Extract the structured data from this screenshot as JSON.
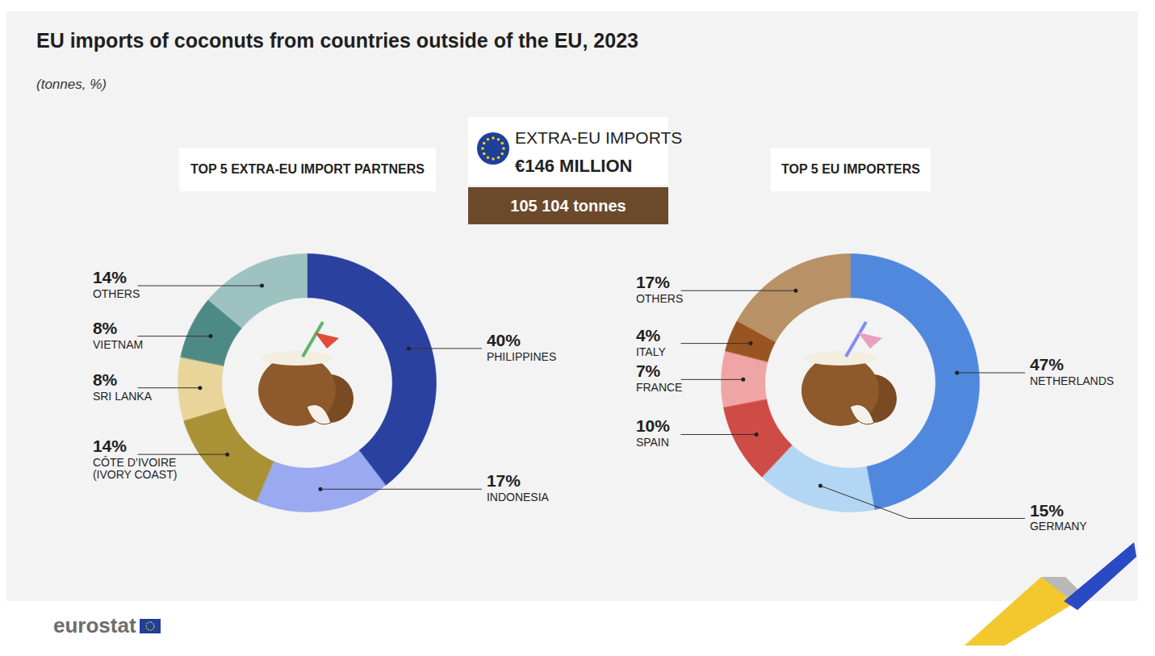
{
  "title": "EU imports of coconuts from countries outside of the EU, 2023",
  "subtitle": "(tonnes, %)",
  "summary": {
    "heading": "EXTRA-EU IMPORTS",
    "value": "€146 MILLION",
    "tonnes": "105 104 tonnes"
  },
  "source": "eurostat",
  "chart_data": [
    {
      "type": "pie",
      "title": "TOP 5 EXTRA-EU IMPORT PARTNERS",
      "categories": [
        "PHILIPPINES",
        "INDONESIA",
        "CÔTE D’IVOIRE\n(IVORY COAST)",
        "SRI LANKA",
        "VIETNAM",
        "OTHERS"
      ],
      "values": [
        40,
        17,
        14,
        8,
        8,
        14
      ],
      "value_labels": [
        "40%",
        "17%",
        "14%",
        "8%",
        "8%",
        "14%"
      ],
      "colors": [
        "#2b41a0",
        "#9aa9f0",
        "#a99236",
        "#e9d59a",
        "#4e8a85",
        "#9dc2c0"
      ],
      "data_labels": true
    },
    {
      "type": "pie",
      "title": "TOP 5 EU IMPORTERS",
      "categories": [
        "NETHERLANDS",
        "GERMANY",
        "SPAIN",
        "FRANCE",
        "ITALY",
        "OTHERS"
      ],
      "values": [
        47,
        15,
        10,
        7,
        4,
        17
      ],
      "value_labels": [
        "47%",
        "15%",
        "10%",
        "7%",
        "4%",
        "17%"
      ],
      "colors": [
        "#5088dd",
        "#b2d6f3",
        "#cf4b45",
        "#f0a5a5",
        "#9a5421",
        "#b99167"
      ],
      "data_labels": true
    }
  ]
}
